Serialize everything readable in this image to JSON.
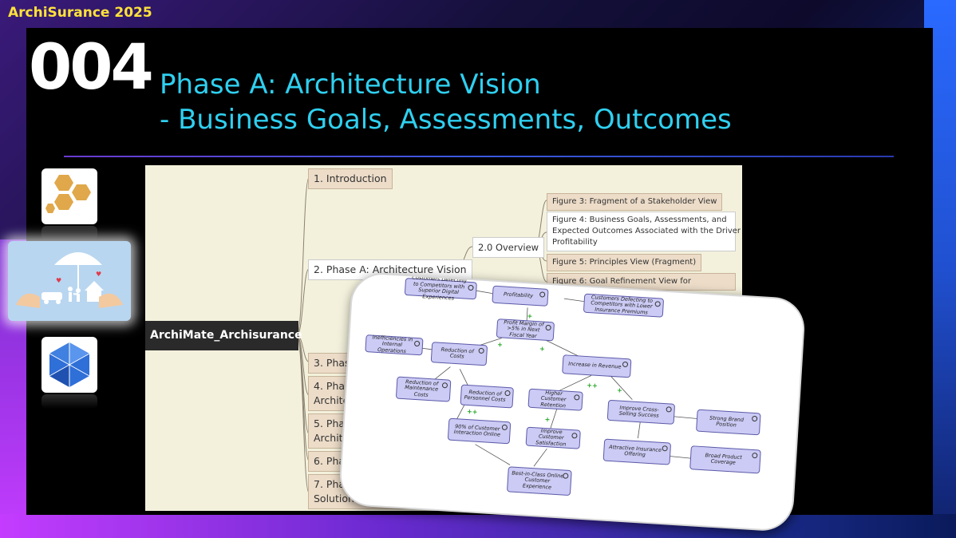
{
  "brand": "ArchiSurance 2025",
  "slide_number": "004",
  "title": {
    "line1": "Phase A: Architecture Vision",
    "line2": "- Business Goals, Assessments, Outcomes"
  },
  "icons": {
    "top": "honeycomb-icon",
    "middle": "insurance-family-icon",
    "bottom": "hexagon-cube-icon"
  },
  "mindmap": {
    "root": "ArchiMate_Archisurance",
    "branches": [
      "1. Introduction",
      "2. Phase A: Architecture Vision",
      "3. Phase B: B",
      "4. Phase C",
      "Architectu",
      "5. Phase",
      "Architec",
      "6. Pha",
      "7. Phas",
      "Solutions and Migration Planning"
    ],
    "overview": "2.0 Overview",
    "figures": [
      "Figure 3: Fragment of a Stakeholder View",
      "Figure 4: Business Goals, Assessments, and",
      "Expected Outcomes Associated with the Driver",
      "Profitability",
      "Figure 5: Principles View (Fragment)",
      "Figure 6: Goal Refinement View for"
    ]
  },
  "diagram": {
    "nodes": {
      "superior": "Customers Defecting to Competitors with Superior Digital Experiences",
      "profitability": "Profitability",
      "lower_premiums": "Customers Defecting to Competitors with Lower Insurance Premiums",
      "profit_margin": "Profit Margin of >5% in Next Fiscal Year",
      "inefficiencies": "Inefficiencies in Internal Operations",
      "reduction_costs": "Reduction of Costs",
      "increase_revenue": "Increase in Revenue",
      "maintenance": "Reduction of Maintenance Costs",
      "personnel": "Reduction of Personnel Costs",
      "retention": "Higher Customer Retention",
      "cross_selling": "Improve Cross-Selling Success",
      "brand": "Strong Brand Position",
      "interaction": "90% of Customer Interaction Online",
      "satisfaction": "Improve Customer Satisfaction",
      "attractive": "Attractive Insurance Offering",
      "coverage": "Broad Product Coverage",
      "best_in_class": "Best-in-Class Online Customer Experience"
    },
    "plus": "+",
    "plusplus": "++"
  }
}
